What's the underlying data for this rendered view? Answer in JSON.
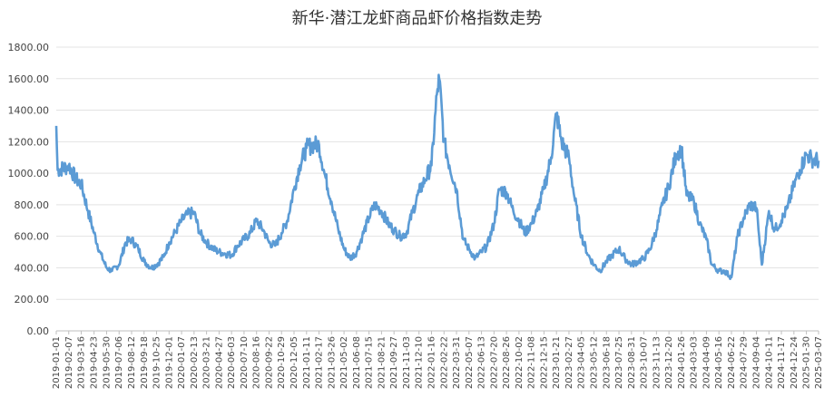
{
  "chart_data": {
    "type": "line",
    "title": "新华·潜江龙虾商品虾价格指数走势",
    "xlabel": "",
    "ylabel": "",
    "ylim": [
      0,
      1800
    ],
    "yticks": [
      "0.00",
      "200.00",
      "400.00",
      "600.00",
      "800.00",
      "1000.00",
      "1200.00",
      "1400.00",
      "1600.00",
      "1800.00"
    ],
    "xticks": [
      "2019-01-01",
      "2019-02-07",
      "2019-03-16",
      "2019-04-23",
      "2019-05-30",
      "2019-07-06",
      "2019-08-12",
      "2019-09-18",
      "2019-10-25",
      "2019-12-01",
      "2020-01-07",
      "2020-02-13",
      "2020-03-21",
      "2020-04-27",
      "2020-06-03",
      "2020-07-10",
      "2020-08-16",
      "2020-09-22",
      "2020-10-29",
      "2020-12-05",
      "2021-01-11",
      "2021-02-17",
      "2021-03-26",
      "2021-05-02",
      "2021-06-08",
      "2021-07-15",
      "2021-08-21",
      "2021-09-27",
      "2021-11-03",
      "2021-12-10",
      "2022-01-16",
      "2022-02-22",
      "2022-03-31",
      "2022-05-07",
      "2022-06-13",
      "2022-07-20",
      "2022-08-26",
      "2022-10-02",
      "2022-11-08",
      "2022-12-15",
      "2023-01-21",
      "2023-02-27",
      "2023-04-05",
      "2023-05-12",
      "2023-06-18",
      "2023-07-25",
      "2023-08-31",
      "2023-10-07",
      "2023-11-13",
      "2023-12-20",
      "2024-01-26",
      "2024-03-03",
      "2024-04-09",
      "2024-05-16",
      "2024-06-22",
      "2024-07-29",
      "2024-09-04",
      "2024-10-11",
      "2024-11-17",
      "2024-12-24",
      "2025-01-30",
      "2025-03-07"
    ],
    "grid": true,
    "legend": "none",
    "series": [
      {
        "color": "#5b9bd5",
        "x": [
          "2019-01-01",
          "2019-01-05",
          "2019-02-01",
          "2019-02-07",
          "2019-03-01",
          "2019-03-16",
          "2019-04-05",
          "2019-04-23",
          "2019-05-10",
          "2019-05-30",
          "2019-06-15",
          "2019-07-06",
          "2019-07-25",
          "2019-08-12",
          "2019-09-01",
          "2019-09-18",
          "2019-10-10",
          "2019-10-25",
          "2019-11-15",
          "2019-12-01",
          "2019-12-20",
          "2020-01-07",
          "2020-01-25",
          "2020-02-13",
          "2020-03-01",
          "2020-03-21",
          "2020-04-10",
          "2020-04-27",
          "2020-05-15",
          "2020-06-03",
          "2020-06-20",
          "2020-07-10",
          "2020-07-28",
          "2020-08-16",
          "2020-09-05",
          "2020-09-22",
          "2020-10-10",
          "2020-10-29",
          "2020-11-15",
          "2020-12-05",
          "2020-12-22",
          "2021-01-11",
          "2021-01-28",
          "2021-02-17",
          "2021-03-05",
          "2021-03-26",
          "2021-04-15",
          "2021-05-02",
          "2021-05-20",
          "2021-06-08",
          "2021-06-25",
          "2021-07-15",
          "2021-08-01",
          "2021-08-21",
          "2021-09-10",
          "2021-09-27",
          "2021-10-15",
          "2021-11-03",
          "2021-11-20",
          "2021-12-10",
          "2021-12-28",
          "2022-01-16",
          "2022-02-01",
          "2022-02-08",
          "2022-02-22",
          "2022-03-10",
          "2022-03-31",
          "2022-04-20",
          "2022-05-07",
          "2022-05-25",
          "2022-06-13",
          "2022-06-30",
          "2022-07-20",
          "2022-08-05",
          "2022-08-26",
          "2022-09-15",
          "2022-10-02",
          "2022-10-20",
          "2022-11-08",
          "2022-11-25",
          "2022-12-15",
          "2023-01-05",
          "2023-01-21",
          "2023-02-05",
          "2023-02-27",
          "2023-03-15",
          "2023-04-05",
          "2023-04-25",
          "2023-05-12",
          "2023-05-30",
          "2023-06-18",
          "2023-07-05",
          "2023-07-25",
          "2023-08-12",
          "2023-08-31",
          "2023-09-20",
          "2023-10-07",
          "2023-10-25",
          "2023-11-13",
          "2023-12-01",
          "2023-12-20",
          "2024-01-10",
          "2024-01-26",
          "2024-02-10",
          "2024-03-03",
          "2024-03-20",
          "2024-04-09",
          "2024-04-25",
          "2024-05-16",
          "2024-06-01",
          "2024-06-22",
          "2024-07-10",
          "2024-07-29",
          "2024-08-15",
          "2024-09-04",
          "2024-09-20",
          "2024-10-11",
          "2024-10-28",
          "2024-11-17",
          "2024-12-05",
          "2024-12-24",
          "2025-01-10",
          "2025-01-30",
          "2025-02-15",
          "2025-03-07"
        ],
        "y": [
          1300,
          1020,
          1040,
          1050,
          960,
          930,
          760,
          620,
          500,
          400,
          380,
          420,
          560,
          580,
          520,
          440,
          400,
          420,
          470,
          560,
          630,
          700,
          740,
          750,
          620,
          560,
          520,
          500,
          490,
          480,
          540,
          580,
          620,
          700,
          640,
          560,
          540,
          620,
          700,
          900,
          1050,
          1160,
          1180,
          1180,
          1000,
          820,
          640,
          520,
          460,
          500,
          600,
          720,
          800,
          760,
          680,
          640,
          600,
          620,
          750,
          880,
          960,
          1050,
          1500,
          1600,
          1200,
          1050,
          900,
          580,
          520,
          460,
          500,
          540,
          680,
          900,
          880,
          760,
          700,
          620,
          680,
          760,
          900,
          1100,
          1380,
          1200,
          1100,
          850,
          600,
          480,
          420,
          380,
          440,
          480,
          520,
          460,
          420,
          440,
          460,
          520,
          640,
          800,
          920,
          1120,
          1160,
          860,
          820,
          680,
          580,
          420,
          380,
          380,
          340,
          600,
          720,
          800,
          780,
          420,
          760,
          640,
          700,
          780,
          920,
          1020,
          1120,
          1090,
          1080
        ]
      }
    ]
  }
}
